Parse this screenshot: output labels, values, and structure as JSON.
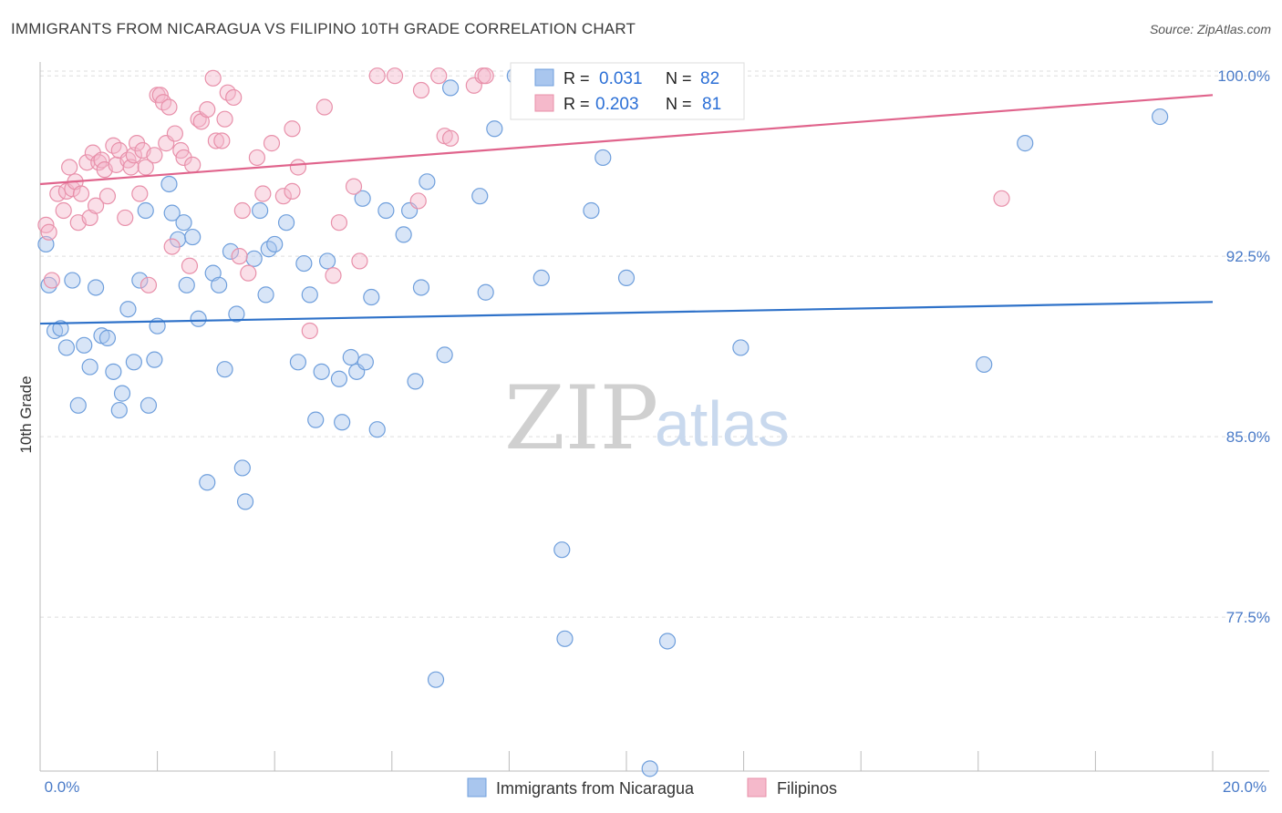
{
  "title": "IMMIGRANTS FROM NICARAGUA VS FILIPINO 10TH GRADE CORRELATION CHART",
  "source": "Source: ZipAtlas.com",
  "watermark": {
    "zip": "ZIP",
    "atlas": "atlas"
  },
  "colors": {
    "blue_fill": "#a9c6ee",
    "blue_stroke": "#6f9fdc",
    "blue_line": "#2f72c9",
    "pink_fill": "#f5b9cb",
    "pink_stroke": "#e890aa",
    "pink_line": "#e0648c",
    "grid": "#dddddd",
    "tick_text": "#4a7bc8"
  },
  "legend_top": {
    "rows": [
      {
        "r_label": "R = ",
        "r_value": "0.031",
        "n_label": "N = ",
        "n_value": "82"
      },
      {
        "r_label": "R = ",
        "r_value": "0.203",
        "n_label": "N = ",
        "n_value": "81"
      }
    ]
  },
  "legend_bottom": [
    "Immigrants from Nicaragua",
    "Filipinos"
  ],
  "chart_data": {
    "type": "scatter",
    "ylabel": "10th Grade",
    "x_tick_labels": [
      "0.0%",
      "20.0%"
    ],
    "y_tick_labels": [
      "100.0%",
      "92.5%",
      "85.0%",
      "77.5%"
    ],
    "y_ticks": [
      100.0,
      92.5,
      85.0,
      77.5
    ],
    "xlim": [
      0,
      20
    ],
    "ylim": [
      71.1,
      100.5
    ],
    "grid": true,
    "series": [
      {
        "name": "Immigrants from Nicaragua",
        "color": "blue",
        "trend": {
          "x": [
            0.0,
            20.0
          ],
          "y": [
            89.7,
            90.6
          ]
        },
        "points": [
          [
            0.1,
            93.0
          ],
          [
            0.15,
            91.3
          ],
          [
            0.25,
            89.4
          ],
          [
            0.35,
            89.5
          ],
          [
            0.45,
            88.7
          ],
          [
            0.55,
            91.5
          ],
          [
            0.65,
            86.3
          ],
          [
            0.75,
            88.8
          ],
          [
            0.85,
            87.9
          ],
          [
            0.95,
            91.2
          ],
          [
            1.05,
            89.2
          ],
          [
            1.15,
            89.1
          ],
          [
            1.25,
            87.7
          ],
          [
            1.35,
            86.1
          ],
          [
            1.4,
            86.8
          ],
          [
            1.5,
            90.3
          ],
          [
            1.6,
            88.1
          ],
          [
            1.7,
            91.5
          ],
          [
            1.8,
            94.4
          ],
          [
            1.85,
            86.3
          ],
          [
            1.95,
            88.2
          ],
          [
            2.0,
            89.6
          ],
          [
            2.2,
            95.5
          ],
          [
            2.25,
            94.3
          ],
          [
            2.35,
            93.2
          ],
          [
            2.45,
            93.9
          ],
          [
            2.5,
            91.3
          ],
          [
            2.6,
            93.3
          ],
          [
            2.7,
            89.9
          ],
          [
            2.85,
            83.1
          ],
          [
            2.95,
            91.8
          ],
          [
            3.05,
            91.3
          ],
          [
            3.15,
            87.8
          ],
          [
            3.25,
            92.7
          ],
          [
            3.35,
            90.1
          ],
          [
            3.45,
            83.7
          ],
          [
            3.5,
            82.3
          ],
          [
            3.65,
            92.4
          ],
          [
            3.75,
            94.4
          ],
          [
            3.85,
            90.9
          ],
          [
            3.9,
            92.8
          ],
          [
            4.0,
            93.0
          ],
          [
            4.2,
            93.9
          ],
          [
            4.4,
            88.1
          ],
          [
            4.5,
            92.2
          ],
          [
            4.6,
            90.9
          ],
          [
            4.7,
            85.7
          ],
          [
            4.8,
            87.7
          ],
          [
            4.9,
            92.3
          ],
          [
            5.1,
            87.4
          ],
          [
            5.15,
            85.6
          ],
          [
            5.3,
            88.3
          ],
          [
            5.4,
            87.7
          ],
          [
            5.5,
            94.9
          ],
          [
            5.55,
            88.1
          ],
          [
            5.65,
            90.8
          ],
          [
            5.75,
            85.3
          ],
          [
            5.9,
            94.4
          ],
          [
            6.2,
            93.4
          ],
          [
            6.3,
            94.4
          ],
          [
            6.4,
            87.3
          ],
          [
            6.5,
            91.2
          ],
          [
            6.6,
            95.6
          ],
          [
            6.75,
            74.9
          ],
          [
            6.9,
            88.4
          ],
          [
            7.0,
            99.5
          ],
          [
            7.5,
            95.0
          ],
          [
            7.6,
            91.0
          ],
          [
            7.75,
            97.8
          ],
          [
            8.1,
            100.0
          ],
          [
            8.55,
            91.6
          ],
          [
            8.9,
            80.3
          ],
          [
            8.95,
            76.6
          ],
          [
            9.4,
            94.4
          ],
          [
            9.6,
            96.6
          ],
          [
            10.0,
            91.6
          ],
          [
            10.4,
            71.2
          ],
          [
            10.7,
            76.5
          ],
          [
            11.95,
            88.7
          ],
          [
            16.1,
            88.0
          ],
          [
            16.8,
            97.2
          ],
          [
            19.1,
            98.3
          ]
        ]
      },
      {
        "name": "Filipinos",
        "color": "pink",
        "trend": {
          "x": [
            0.0,
            20.0
          ],
          "y": [
            95.5,
            99.2
          ]
        },
        "points": [
          [
            0.1,
            93.8
          ],
          [
            0.15,
            93.5
          ],
          [
            0.2,
            91.5
          ],
          [
            0.3,
            95.1
          ],
          [
            0.4,
            94.4
          ],
          [
            0.45,
            95.2
          ],
          [
            0.5,
            96.2
          ],
          [
            0.55,
            95.3
          ],
          [
            0.6,
            95.6
          ],
          [
            0.65,
            93.9
          ],
          [
            0.7,
            95.1
          ],
          [
            0.8,
            96.4
          ],
          [
            0.85,
            94.1
          ],
          [
            0.9,
            96.8
          ],
          [
            0.95,
            94.6
          ],
          [
            1.0,
            96.4
          ],
          [
            1.05,
            96.5
          ],
          [
            1.1,
            96.1
          ],
          [
            1.15,
            95.0
          ],
          [
            1.25,
            97.1
          ],
          [
            1.3,
            96.3
          ],
          [
            1.35,
            96.9
          ],
          [
            1.45,
            94.1
          ],
          [
            1.5,
            96.5
          ],
          [
            1.55,
            96.2
          ],
          [
            1.6,
            96.7
          ],
          [
            1.65,
            97.2
          ],
          [
            1.7,
            95.1
          ],
          [
            1.75,
            96.9
          ],
          [
            1.8,
            96.2
          ],
          [
            1.85,
            91.3
          ],
          [
            1.95,
            96.7
          ],
          [
            2.0,
            99.2
          ],
          [
            2.05,
            99.2
          ],
          [
            2.1,
            98.9
          ],
          [
            2.15,
            97.2
          ],
          [
            2.2,
            98.7
          ],
          [
            2.25,
            92.9
          ],
          [
            2.3,
            97.6
          ],
          [
            2.4,
            96.9
          ],
          [
            2.45,
            96.6
          ],
          [
            2.55,
            92.1
          ],
          [
            2.6,
            96.3
          ],
          [
            2.7,
            98.2
          ],
          [
            2.75,
            98.1
          ],
          [
            2.85,
            98.6
          ],
          [
            2.95,
            99.9
          ],
          [
            3.0,
            97.3
          ],
          [
            3.1,
            97.3
          ],
          [
            3.15,
            98.2
          ],
          [
            3.2,
            99.3
          ],
          [
            3.3,
            99.1
          ],
          [
            3.4,
            92.5
          ],
          [
            3.45,
            94.4
          ],
          [
            3.55,
            91.8
          ],
          [
            3.7,
            96.6
          ],
          [
            3.8,
            95.1
          ],
          [
            3.95,
            97.2
          ],
          [
            4.15,
            95.0
          ],
          [
            4.3,
            95.2
          ],
          [
            4.3,
            97.8
          ],
          [
            4.4,
            96.2
          ],
          [
            4.6,
            89.4
          ],
          [
            4.85,
            98.7
          ],
          [
            5.0,
            91.7
          ],
          [
            5.1,
            93.9
          ],
          [
            5.35,
            95.4
          ],
          [
            5.45,
            92.3
          ],
          [
            5.75,
            100.0
          ],
          [
            6.05,
            100.0
          ],
          [
            6.45,
            94.8
          ],
          [
            6.5,
            99.4
          ],
          [
            6.8,
            100.0
          ],
          [
            6.9,
            97.5
          ],
          [
            7.0,
            97.4
          ],
          [
            7.4,
            99.6
          ],
          [
            7.55,
            100.0
          ],
          [
            7.6,
            100.0
          ],
          [
            8.65,
            100.0
          ],
          [
            11.7,
            100.0
          ],
          [
            16.4,
            94.9
          ]
        ]
      }
    ]
  }
}
